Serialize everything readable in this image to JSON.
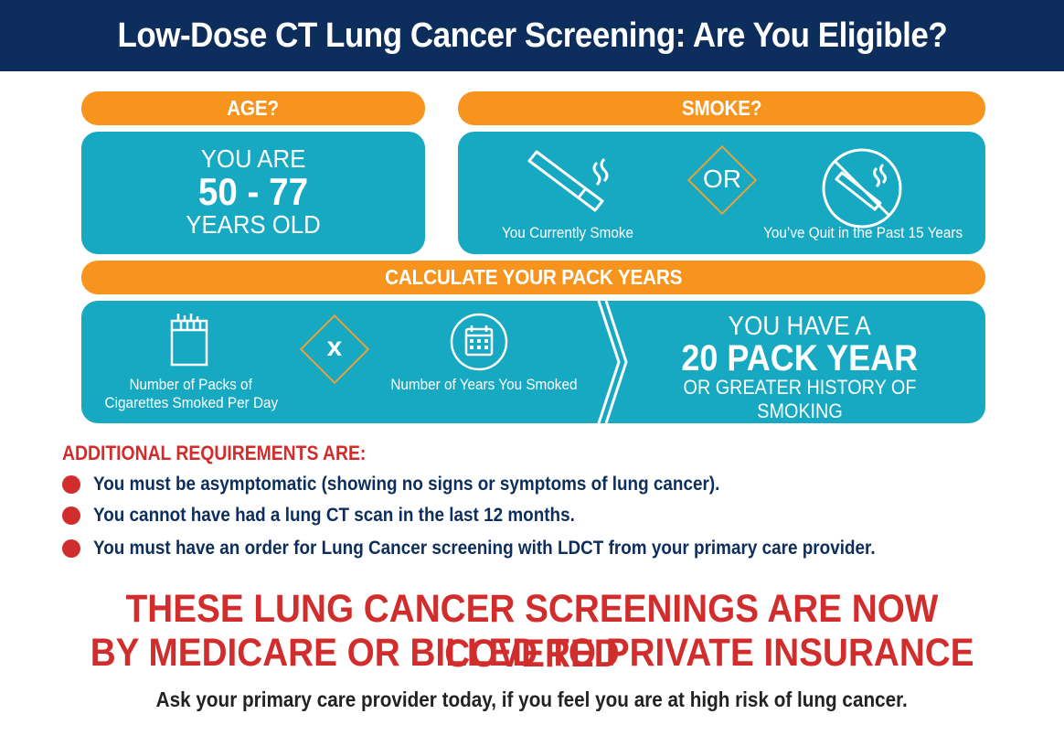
{
  "header": {
    "title": "Low-Dose CT Lung Cancer Screening: Are You Eligible?"
  },
  "age": {
    "pill": "AGE?",
    "line1": "YOU ARE",
    "range": "50 - 77",
    "line3": "YEARS OLD"
  },
  "smoke": {
    "pill": "SMOKE?",
    "current_caption": "You Currently Smoke",
    "or_label": "OR",
    "quit_caption": "You’ve Quit in the Past 15 Years",
    "icons": [
      "cigarette-icon",
      "no-smoking-icon"
    ]
  },
  "pack": {
    "pill": "CALCULATE YOUR PACK YEARS",
    "packs_caption_1": "Number of Packs of",
    "packs_caption_2": "Cigarettes Smoked Per Day",
    "times_label": "x",
    "years_caption": "Number of Years You Smoked",
    "result_1": "YOU HAVE A",
    "result_2": "20 PACK YEAR",
    "result_3": "OR GREATER HISTORY OF SMOKING",
    "icons": [
      "cigarette-pack-icon",
      "calendar-icon"
    ]
  },
  "requirements": {
    "title": "ADDITIONAL REQUIREMENTS ARE:",
    "items": [
      "You must be asymptomatic (showing no signs or symptoms of lung cancer).",
      "You cannot have had a lung CT scan in the last 12 months.",
      "You must have an order for Lung Cancer screening with LDCT from your primary care provider."
    ]
  },
  "coverage": {
    "line1": "THESE LUNG CANCER SCREENINGS ARE NOW COVERED",
    "line2": "BY MEDICARE OR BILLED TO PRIVATE INSURANCE"
  },
  "footer": {
    "ask": "Ask your primary care provider today, if you feel you are at high risk of lung cancer."
  },
  "colors": {
    "navy": "#0d2e5c",
    "orange": "#f7941d",
    "teal": "#17a8c2",
    "red": "#d12d2d",
    "gold": "#e8a23a"
  }
}
